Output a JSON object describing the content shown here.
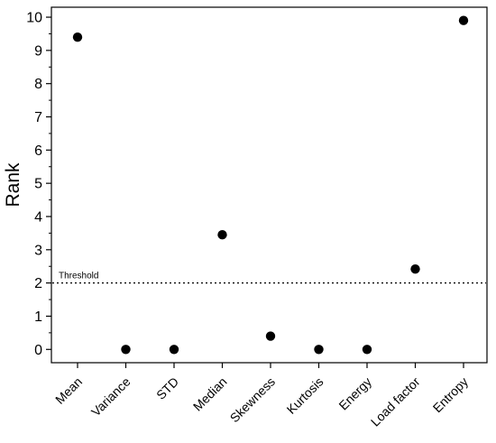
{
  "chart_data": {
    "type": "scatter",
    "title": "",
    "xlabel": "",
    "ylabel": "Rank",
    "categories": [
      "Mean",
      "Variance",
      "STD",
      "Median",
      "Skewness",
      "Kurtosis",
      "Energy",
      "Load factor",
      "Entropy"
    ],
    "values": [
      9.4,
      0.0,
      0.0,
      3.45,
      0.4,
      0.0,
      0.0,
      2.42,
      9.9
    ],
    "ylim": [
      -0.4,
      10.3
    ],
    "yticks": [
      0,
      1,
      2,
      3,
      4,
      5,
      6,
      7,
      8,
      9,
      10
    ],
    "ytick_labels": [
      "0",
      "1",
      "2",
      "3",
      "4",
      "5",
      "6",
      "7",
      "8",
      "9",
      "10"
    ],
    "threshold": {
      "value": 2,
      "label": "Threshold"
    },
    "grid": false,
    "legend": "none",
    "colors": {
      "marker": "#000000",
      "axes": "#000000",
      "background": "#ffffff"
    }
  }
}
